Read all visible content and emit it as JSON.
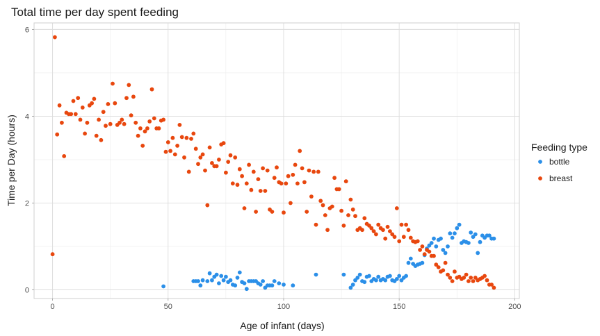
{
  "chart_data": {
    "type": "scatter",
    "title": "Total time per day spent feeding",
    "xlabel": "Age of infant (days)",
    "ylabel": "Time per Day (hours)",
    "xlim": [
      -8,
      202
    ],
    "ylim": [
      -0.2,
      6.15
    ],
    "x_ticks": [
      0,
      50,
      100,
      150,
      200
    ],
    "y_ticks": [
      0,
      2,
      4,
      6
    ],
    "grid": true,
    "legend": {
      "title": "Feeding type",
      "placement": "right"
    },
    "series": [
      {
        "name": "bottle",
        "color": "#2b8fe8",
        "points": [
          [
            48,
            0.08
          ],
          [
            61,
            0.2
          ],
          [
            62,
            0.2
          ],
          [
            63,
            0.2
          ],
          [
            64,
            0.1
          ],
          [
            65,
            0.22
          ],
          [
            67,
            0.2
          ],
          [
            68,
            0.38
          ],
          [
            69,
            0.22
          ],
          [
            70,
            0.3
          ],
          [
            71,
            0.35
          ],
          [
            72,
            0.15
          ],
          [
            73,
            0.32
          ],
          [
            74,
            0.22
          ],
          [
            75,
            0.3
          ],
          [
            76,
            0.18
          ],
          [
            77,
            0.22
          ],
          [
            78,
            0.12
          ],
          [
            79,
            0.1
          ],
          [
            80,
            0.28
          ],
          [
            81,
            0.4
          ],
          [
            82,
            0.18
          ],
          [
            83,
            0.15
          ],
          [
            84,
            0.02
          ],
          [
            85,
            0.2
          ],
          [
            86,
            0.2
          ],
          [
            87,
            0.2
          ],
          [
            88,
            0.2
          ],
          [
            89,
            0.15
          ],
          [
            90,
            0.12
          ],
          [
            91,
            0.2
          ],
          [
            92,
            0.05
          ],
          [
            93,
            0.1
          ],
          [
            94,
            0.1
          ],
          [
            95,
            0.1
          ],
          [
            96,
            0.2
          ],
          [
            98,
            0.15
          ],
          [
            100,
            0.12
          ],
          [
            104,
            0.1
          ],
          [
            114,
            0.35
          ],
          [
            126,
            0.35
          ],
          [
            129,
            0.05
          ],
          [
            130,
            0.12
          ],
          [
            131,
            0.22
          ],
          [
            132,
            0.28
          ],
          [
            133,
            0.35
          ],
          [
            134,
            0.2
          ],
          [
            135,
            0.18
          ],
          [
            136,
            0.3
          ],
          [
            137,
            0.32
          ],
          [
            138,
            0.2
          ],
          [
            139,
            0.25
          ],
          [
            140,
            0.22
          ],
          [
            141,
            0.3
          ],
          [
            142,
            0.22
          ],
          [
            143,
            0.25
          ],
          [
            144,
            0.22
          ],
          [
            145,
            0.3
          ],
          [
            146,
            0.32
          ],
          [
            147,
            0.22
          ],
          [
            148,
            0.2
          ],
          [
            149,
            0.25
          ],
          [
            150,
            0.32
          ],
          [
            151,
            0.22
          ],
          [
            152,
            0.28
          ],
          [
            153,
            0.32
          ],
          [
            154,
            0.62
          ],
          [
            155,
            0.72
          ],
          [
            156,
            0.6
          ],
          [
            157,
            0.55
          ],
          [
            158,
            0.58
          ],
          [
            159,
            0.6
          ],
          [
            160,
            0.62
          ],
          [
            161,
            0.8
          ],
          [
            162,
            0.95
          ],
          [
            163,
            1.02
          ],
          [
            164,
            1.08
          ],
          [
            165,
            1.18
          ],
          [
            166,
            1.0
          ],
          [
            167,
            1.15
          ],
          [
            168,
            1.18
          ],
          [
            169,
            0.92
          ],
          [
            170,
            0.85
          ],
          [
            171,
            1.0
          ],
          [
            172,
            1.3
          ],
          [
            173,
            1.2
          ],
          [
            174,
            1.3
          ],
          [
            175,
            1.42
          ],
          [
            176,
            1.5
          ],
          [
            177,
            1.08
          ],
          [
            178,
            1.12
          ],
          [
            179,
            1.1
          ],
          [
            180,
            1.08
          ],
          [
            181,
            1.32
          ],
          [
            182,
            1.22
          ],
          [
            183,
            1.28
          ],
          [
            184,
            0.85
          ],
          [
            185,
            1.1
          ],
          [
            186,
            1.25
          ],
          [
            187,
            1.2
          ],
          [
            188,
            1.25
          ],
          [
            189,
            1.25
          ],
          [
            190,
            1.18
          ],
          [
            191,
            1.18
          ]
        ]
      },
      {
        "name": "breast",
        "color": "#e8470e",
        "points": [
          [
            0,
            0.82
          ],
          [
            1,
            5.82
          ],
          [
            2,
            3.58
          ],
          [
            3,
            4.25
          ],
          [
            4,
            3.85
          ],
          [
            5,
            3.08
          ],
          [
            6,
            4.08
          ],
          [
            7,
            4.05
          ],
          [
            8,
            4.05
          ],
          [
            9,
            4.35
          ],
          [
            10,
            4.05
          ],
          [
            11,
            4.42
          ],
          [
            12,
            3.92
          ],
          [
            13,
            4.2
          ],
          [
            14,
            3.6
          ],
          [
            15,
            3.85
          ],
          [
            16,
            4.25
          ],
          [
            17,
            4.3
          ],
          [
            18,
            4.4
          ],
          [
            19,
            3.55
          ],
          [
            20,
            3.92
          ],
          [
            21,
            3.45
          ],
          [
            22,
            4.1
          ],
          [
            23,
            3.78
          ],
          [
            24,
            4.28
          ],
          [
            25,
            3.82
          ],
          [
            26,
            4.75
          ],
          [
            27,
            4.3
          ],
          [
            28,
            3.8
          ],
          [
            29,
            3.85
          ],
          [
            30,
            3.92
          ],
          [
            31,
            3.82
          ],
          [
            32,
            4.42
          ],
          [
            33,
            4.72
          ],
          [
            34,
            4.02
          ],
          [
            35,
            4.45
          ],
          [
            36,
            3.85
          ],
          [
            37,
            3.55
          ],
          [
            38,
            3.72
          ],
          [
            39,
            3.32
          ],
          [
            40,
            3.65
          ],
          [
            41,
            3.72
          ],
          [
            42,
            3.88
          ],
          [
            43,
            4.62
          ],
          [
            44,
            3.95
          ],
          [
            45,
            3.72
          ],
          [
            46,
            3.72
          ],
          [
            47,
            3.9
          ],
          [
            48,
            3.92
          ],
          [
            49,
            3.18
          ],
          [
            50,
            3.4
          ],
          [
            51,
            3.2
          ],
          [
            52,
            3.5
          ],
          [
            53,
            3.12
          ],
          [
            54,
            3.32
          ],
          [
            55,
            3.8
          ],
          [
            56,
            3.52
          ],
          [
            57,
            3.05
          ],
          [
            58,
            3.5
          ],
          [
            59,
            2.72
          ],
          [
            60,
            3.48
          ],
          [
            61,
            3.6
          ],
          [
            62,
            3.25
          ],
          [
            63,
            2.9
          ],
          [
            64,
            3.05
          ],
          [
            65,
            3.12
          ],
          [
            66,
            2.75
          ],
          [
            67,
            1.95
          ],
          [
            68,
            3.28
          ],
          [
            69,
            2.92
          ],
          [
            70,
            2.85
          ],
          [
            71,
            2.85
          ],
          [
            72,
            3.0
          ],
          [
            73,
            3.35
          ],
          [
            74,
            3.38
          ],
          [
            75,
            2.7
          ],
          [
            76,
            2.95
          ],
          [
            77,
            3.1
          ],
          [
            78,
            2.45
          ],
          [
            79,
            3.05
          ],
          [
            80,
            2.42
          ],
          [
            81,
            2.78
          ],
          [
            82,
            2.62
          ],
          [
            83,
            1.88
          ],
          [
            84,
            2.45
          ],
          [
            85,
            2.88
          ],
          [
            86,
            2.3
          ],
          [
            87,
            2.72
          ],
          [
            88,
            1.8
          ],
          [
            89,
            2.55
          ],
          [
            90,
            2.28
          ],
          [
            91,
            2.8
          ],
          [
            92,
            2.28
          ],
          [
            93,
            2.75
          ],
          [
            94,
            1.85
          ],
          [
            95,
            1.8
          ],
          [
            96,
            2.58
          ],
          [
            97,
            2.82
          ],
          [
            98,
            2.48
          ],
          [
            99,
            2.45
          ],
          [
            100,
            1.78
          ],
          [
            101,
            2.45
          ],
          [
            102,
            2.62
          ],
          [
            103,
            2.0
          ],
          [
            104,
            2.65
          ],
          [
            105,
            2.88
          ],
          [
            106,
            2.45
          ],
          [
            107,
            3.2
          ],
          [
            108,
            2.8
          ],
          [
            109,
            2.48
          ],
          [
            110,
            1.8
          ],
          [
            111,
            2.75
          ],
          [
            112,
            2.15
          ],
          [
            113,
            2.72
          ],
          [
            114,
            1.5
          ],
          [
            115,
            2.72
          ],
          [
            116,
            2.05
          ],
          [
            117,
            1.95
          ],
          [
            118,
            1.72
          ],
          [
            119,
            1.38
          ],
          [
            120,
            1.88
          ],
          [
            121,
            1.92
          ],
          [
            122,
            2.58
          ],
          [
            123,
            2.32
          ],
          [
            124,
            2.32
          ],
          [
            125,
            1.82
          ],
          [
            126,
            1.48
          ],
          [
            127,
            2.5
          ],
          [
            128,
            1.72
          ],
          [
            129,
            2.08
          ],
          [
            130,
            1.85
          ],
          [
            131,
            1.7
          ],
          [
            132,
            1.38
          ],
          [
            133,
            1.42
          ],
          [
            134,
            1.38
          ],
          [
            135,
            1.65
          ],
          [
            136,
            1.52
          ],
          [
            137,
            1.48
          ],
          [
            138,
            1.42
          ],
          [
            139,
            1.35
          ],
          [
            140,
            1.28
          ],
          [
            141,
            1.5
          ],
          [
            142,
            1.42
          ],
          [
            143,
            1.38
          ],
          [
            144,
            1.18
          ],
          [
            145,
            1.45
          ],
          [
            146,
            1.35
          ],
          [
            147,
            1.28
          ],
          [
            148,
            1.22
          ],
          [
            149,
            1.88
          ],
          [
            150,
            1.12
          ],
          [
            151,
            1.5
          ],
          [
            152,
            1.22
          ],
          [
            153,
            1.5
          ],
          [
            154,
            1.38
          ],
          [
            155,
            1.2
          ],
          [
            156,
            1.12
          ],
          [
            157,
            1.1
          ],
          [
            158,
            1.12
          ],
          [
            159,
            0.92
          ],
          [
            160,
            1.0
          ],
          [
            161,
            0.82
          ],
          [
            162,
            0.92
          ],
          [
            163,
            0.88
          ],
          [
            164,
            0.78
          ],
          [
            165,
            0.78
          ],
          [
            166,
            0.58
          ],
          [
            167,
            0.52
          ],
          [
            168,
            0.42
          ],
          [
            169,
            0.45
          ],
          [
            170,
            0.62
          ],
          [
            171,
            0.35
          ],
          [
            172,
            0.28
          ],
          [
            173,
            0.2
          ],
          [
            174,
            0.42
          ],
          [
            175,
            0.28
          ],
          [
            176,
            0.3
          ],
          [
            177,
            0.25
          ],
          [
            178,
            0.28
          ],
          [
            179,
            0.35
          ],
          [
            180,
            0.2
          ],
          [
            181,
            0.28
          ],
          [
            182,
            0.2
          ],
          [
            183,
            0.28
          ],
          [
            184,
            0.22
          ],
          [
            185,
            0.25
          ],
          [
            186,
            0.28
          ],
          [
            187,
            0.32
          ],
          [
            188,
            0.22
          ],
          [
            189,
            0.12
          ],
          [
            190,
            0.12
          ],
          [
            191,
            0.05
          ]
        ]
      }
    ]
  }
}
